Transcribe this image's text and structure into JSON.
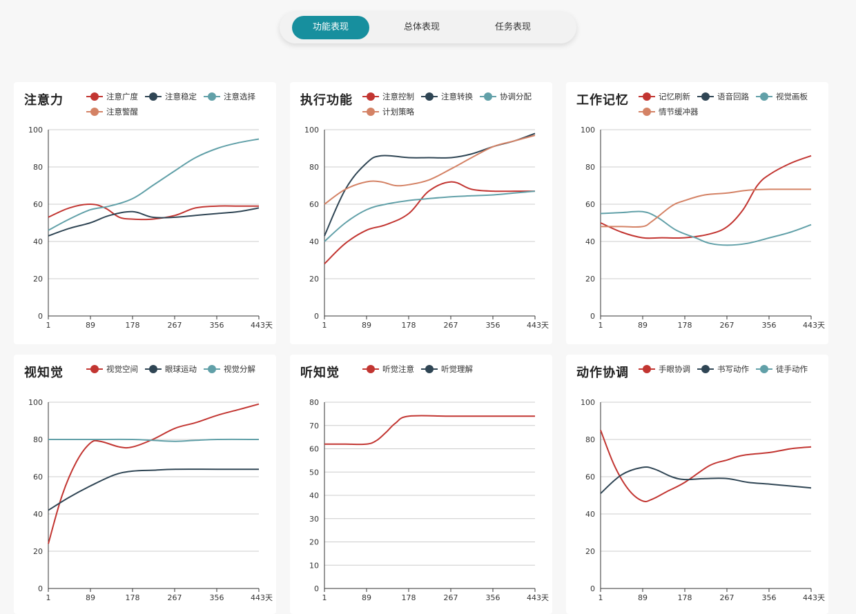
{
  "tabs": [
    {
      "label": "功能表现",
      "active": true
    },
    {
      "label": "总体表现",
      "active": false
    },
    {
      "label": "任务表现",
      "active": false
    }
  ],
  "colors": {
    "accent": "#178f9e",
    "red": "#c23531",
    "navy": "#2f4554",
    "teal": "#61a0a8",
    "orange": "#d48265"
  },
  "chart_data": [
    {
      "type": "line",
      "title": "注意力",
      "x_ticks": [
        "1",
        "89",
        "178",
        "267",
        "356",
        "443天"
      ],
      "x_range": [
        1,
        443
      ],
      "ylim": [
        0,
        100
      ],
      "y_ticks": [
        "0",
        "20",
        "40",
        "60",
        "80",
        "100"
      ],
      "series": [
        {
          "name": "注意广度",
          "color": "#c23531",
          "points": [
            [
              1,
              53
            ],
            [
              45,
              58
            ],
            [
              89,
              60
            ],
            [
              120,
              58
            ],
            [
              150,
              53
            ],
            [
              178,
              52
            ],
            [
              220,
              52
            ],
            [
              267,
              54
            ],
            [
              310,
              58
            ],
            [
              356,
              59
            ],
            [
              400,
              59
            ],
            [
              443,
              59
            ]
          ]
        },
        {
          "name": "注意稳定",
          "color": "#2f4554",
          "points": [
            [
              1,
              43
            ],
            [
              45,
              47
            ],
            [
              89,
              50
            ],
            [
              130,
              54
            ],
            [
              178,
              56
            ],
            [
              220,
              53
            ],
            [
              267,
              53
            ],
            [
              310,
              54
            ],
            [
              356,
              55
            ],
            [
              400,
              56
            ],
            [
              443,
              58
            ]
          ]
        },
        {
          "name": "注意选择",
          "color": "#61a0a8",
          "points": [
            [
              1,
              46
            ],
            [
              45,
              52
            ],
            [
              89,
              57
            ],
            [
              130,
              59
            ],
            [
              178,
              63
            ],
            [
              220,
              70
            ],
            [
              267,
              78
            ],
            [
              310,
              85
            ],
            [
              356,
              90
            ],
            [
              400,
              93
            ],
            [
              443,
              95
            ]
          ]
        },
        {
          "name": "注意警醒",
          "color": "#d48265",
          "points": []
        }
      ]
    },
    {
      "type": "line",
      "title": "执行功能",
      "x_ticks": [
        "1",
        "89",
        "178",
        "267",
        "356",
        "443天"
      ],
      "x_range": [
        1,
        443
      ],
      "ylim": [
        0,
        100
      ],
      "y_ticks": [
        "0",
        "20",
        "40",
        "60",
        "80",
        "100"
      ],
      "series": [
        {
          "name": "注意控制",
          "color": "#c23531",
          "points": [
            [
              1,
              28
            ],
            [
              45,
              39
            ],
            [
              89,
              46
            ],
            [
              130,
              49
            ],
            [
              178,
              55
            ],
            [
              220,
              67
            ],
            [
              267,
              72
            ],
            [
              310,
              68
            ],
            [
              356,
              67
            ],
            [
              400,
              67
            ],
            [
              443,
              67
            ]
          ]
        },
        {
          "name": "注意转换",
          "color": "#2f4554",
          "points": [
            [
              1,
              43
            ],
            [
              45,
              68
            ],
            [
              89,
              82
            ],
            [
              120,
              86
            ],
            [
              178,
              85
            ],
            [
              220,
              85
            ],
            [
              267,
              85
            ],
            [
              310,
              87
            ],
            [
              356,
              91
            ],
            [
              400,
              94
            ],
            [
              443,
              98
            ]
          ]
        },
        {
          "name": "协调分配",
          "color": "#61a0a8",
          "points": [
            [
              1,
              40
            ],
            [
              45,
              50
            ],
            [
              89,
              57
            ],
            [
              130,
              60
            ],
            [
              178,
              62
            ],
            [
              220,
              63
            ],
            [
              267,
              64
            ],
            [
              310,
              64.5
            ],
            [
              356,
              65
            ],
            [
              400,
              66
            ],
            [
              443,
              67
            ]
          ]
        },
        {
          "name": "计划策略",
          "color": "#d48265",
          "points": [
            [
              1,
              60
            ],
            [
              45,
              68
            ],
            [
              89,
              72
            ],
            [
              120,
              72
            ],
            [
              150,
              70
            ],
            [
              178,
              70.5
            ],
            [
              220,
              73
            ],
            [
              267,
              79
            ],
            [
              310,
              85
            ],
            [
              356,
              91
            ],
            [
              400,
              94
            ],
            [
              443,
              97
            ]
          ]
        }
      ]
    },
    {
      "type": "line",
      "title": "工作记忆",
      "x_ticks": [
        "1",
        "89",
        "178",
        "267",
        "356",
        "443天"
      ],
      "x_range": [
        1,
        443
      ],
      "ylim": [
        0,
        100
      ],
      "y_ticks": [
        "0",
        "20",
        "40",
        "60",
        "80",
        "100"
      ],
      "series": [
        {
          "name": "记忆刷新",
          "color": "#c23531",
          "points": [
            [
              1,
              50
            ],
            [
              45,
              45
            ],
            [
              89,
              42
            ],
            [
              130,
              42
            ],
            [
              178,
              42
            ],
            [
              230,
              44
            ],
            [
              267,
              48
            ],
            [
              300,
              57
            ],
            [
              330,
              70
            ],
            [
              356,
              76
            ],
            [
              400,
              82
            ],
            [
              443,
              86
            ]
          ]
        },
        {
          "name": "语音回路",
          "color": "#2f4554",
          "points": []
        },
        {
          "name": "视觉画板",
          "color": "#61a0a8",
          "points": [
            [
              1,
              55
            ],
            [
              45,
              55.5
            ],
            [
              89,
              56
            ],
            [
              120,
              53
            ],
            [
              160,
              46
            ],
            [
              200,
              42
            ],
            [
              230,
              39
            ],
            [
              267,
              38
            ],
            [
              310,
              39
            ],
            [
              356,
              42
            ],
            [
              400,
              45
            ],
            [
              443,
              49
            ]
          ]
        },
        {
          "name": "情节缓冲器",
          "color": "#d48265",
          "points": [
            [
              1,
              48
            ],
            [
              45,
              48
            ],
            [
              89,
              48
            ],
            [
              110,
              51
            ],
            [
              150,
              59
            ],
            [
              178,
              62
            ],
            [
              220,
              65
            ],
            [
              267,
              66
            ],
            [
              310,
              67.5
            ],
            [
              356,
              68
            ],
            [
              400,
              68
            ],
            [
              443,
              68
            ]
          ]
        }
      ]
    },
    {
      "type": "line",
      "title": "视知觉",
      "x_ticks": [
        "1",
        "89",
        "178",
        "267",
        "356",
        "443天"
      ],
      "x_range": [
        1,
        443
      ],
      "ylim": [
        0,
        100
      ],
      "y_ticks": [
        "0",
        "20",
        "40",
        "60",
        "80",
        "100"
      ],
      "series": [
        {
          "name": "视觉空间",
          "color": "#c23531",
          "points": [
            [
              1,
              24
            ],
            [
              30,
              50
            ],
            [
              60,
              68
            ],
            [
              89,
              78
            ],
            [
              110,
              79
            ],
            [
              150,
              76
            ],
            [
              178,
              76
            ],
            [
              220,
              80
            ],
            [
              267,
              86
            ],
            [
              310,
              89
            ],
            [
              356,
              93
            ],
            [
              400,
              96
            ],
            [
              443,
              99
            ]
          ]
        },
        {
          "name": "眼球运动",
          "color": "#2f4554",
          "points": [
            [
              1,
              42
            ],
            [
              45,
              49
            ],
            [
              89,
              55
            ],
            [
              140,
              61
            ],
            [
              178,
              63
            ],
            [
              220,
              63.5
            ],
            [
              267,
              64
            ],
            [
              356,
              64
            ],
            [
              443,
              64
            ]
          ]
        },
        {
          "name": "视觉分解",
          "color": "#61a0a8",
          "points": [
            [
              1,
              80
            ],
            [
              89,
              80
            ],
            [
              178,
              80
            ],
            [
              220,
              79.5
            ],
            [
              267,
              79
            ],
            [
              310,
              79.5
            ],
            [
              356,
              80
            ],
            [
              443,
              80
            ]
          ]
        }
      ]
    },
    {
      "type": "line",
      "title": "听知觉",
      "x_ticks": [
        "1",
        "89",
        "178",
        "267",
        "356",
        "443天"
      ],
      "x_range": [
        1,
        443
      ],
      "ylim": [
        0,
        80
      ],
      "y_ticks": [
        "0",
        "10",
        "20",
        "30",
        "40",
        "50",
        "60",
        "70",
        "80"
      ],
      "series": [
        {
          "name": "听觉注意",
          "color": "#c23531",
          "points": [
            [
              1,
              62
            ],
            [
              45,
              62
            ],
            [
              89,
              62
            ],
            [
              110,
              63.5
            ],
            [
              130,
              67
            ],
            [
              150,
              71
            ],
            [
              178,
              74
            ],
            [
              267,
              74
            ],
            [
              356,
              74
            ],
            [
              443,
              74
            ]
          ]
        },
        {
          "name": "听觉理解",
          "color": "#2f4554",
          "points": []
        }
      ]
    },
    {
      "type": "line",
      "title": "动作协调",
      "x_ticks": [
        "1",
        "89",
        "178",
        "267",
        "356",
        "443天"
      ],
      "x_range": [
        1,
        443
      ],
      "ylim": [
        0,
        100
      ],
      "y_ticks": [
        "0",
        "20",
        "40",
        "60",
        "80",
        "100"
      ],
      "series": [
        {
          "name": "手眼协调",
          "color": "#c23531",
          "points": [
            [
              1,
              85
            ],
            [
              30,
              66
            ],
            [
              60,
              53
            ],
            [
              89,
              47
            ],
            [
              110,
              48
            ],
            [
              140,
              52
            ],
            [
              178,
              57
            ],
            [
              230,
              66
            ],
            [
              267,
              69
            ],
            [
              300,
              71.5
            ],
            [
              356,
              73
            ],
            [
              400,
              75
            ],
            [
              443,
              76
            ]
          ]
        },
        {
          "name": "书写动作",
          "color": "#2f4554",
          "points": [
            [
              1,
              51
            ],
            [
              45,
              61
            ],
            [
              89,
              65
            ],
            [
              115,
              64
            ],
            [
              150,
              60
            ],
            [
              178,
              58.5
            ],
            [
              220,
              59
            ],
            [
              267,
              59
            ],
            [
              310,
              57
            ],
            [
              356,
              56
            ],
            [
              400,
              55
            ],
            [
              443,
              54
            ]
          ]
        },
        {
          "name": "徒手动作",
          "color": "#61a0a8",
          "points": []
        }
      ]
    }
  ]
}
